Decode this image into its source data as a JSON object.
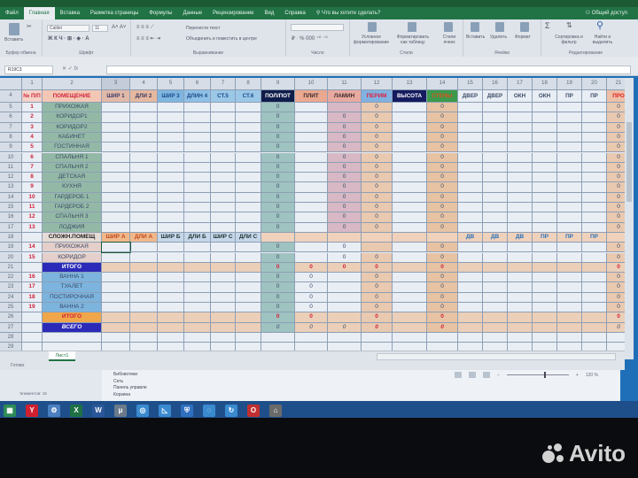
{
  "window": {
    "share": "Общий доступ",
    "tell_me": "Что вы хотите сделать?"
  },
  "tabs": [
    "Файл",
    "Главная",
    "Вставка",
    "Разметка страницы",
    "Формулы",
    "Данные",
    "Рецензирование",
    "Вид",
    "Справка"
  ],
  "active_tab": "Главная",
  "ribbon": {
    "clipboard": {
      "paste": "Вставить",
      "label": "Буфер обмена"
    },
    "font": {
      "name": "Calibri",
      "size": "11",
      "label": "Шрифт"
    },
    "alignment": {
      "wrap": "Перенести текст",
      "merge": "Объединить и поместить в центре",
      "label": "Выравнивание"
    },
    "number": {
      "label": "Число"
    },
    "styles": {
      "conditional": "Условное форматирование",
      "as_table": "Форматировать как таблицу",
      "cell_styles": "Стили ячеек",
      "label": "Стили"
    },
    "cells": {
      "insert": "Вставить",
      "delete": "Удалить",
      "format": "Формат",
      "label": "Ячейки"
    },
    "editing": {
      "sort": "Сортировка и фильтр",
      "find": "Найти и выделить",
      "label": "Редактирование"
    }
  },
  "formula_bar": {
    "name_box": "R19C3",
    "formula": ""
  },
  "sheet": {
    "columns": [
      "1",
      "2",
      "3",
      "4",
      "5",
      "6",
      "7",
      "8",
      "9",
      "10",
      "11",
      "12",
      "13",
      "14",
      "15",
      "16",
      "17",
      "18",
      "19",
      "20",
      "21"
    ],
    "selected_cell": {
      "row": 19,
      "col": 3
    },
    "rows": [
      {
        "n": "4",
        "type": "header",
        "cells": [
          "№ П/П",
          "ПОМЕЩЕНИЕ",
          "ШИР 1",
          "ДЛИ 2",
          "ШИР 3",
          "ДЛИН 4",
          "СТ.5",
          "СТ.6",
          "ПОЛ/ПОТ",
          "ПЛИТ",
          "ЛАМИН",
          "ПЕРИМ",
          "ВЫСОТА",
          "СТЕНЫ",
          "ДВЕР",
          "ДВЕР",
          "ОКН",
          "ОКН",
          "ПР",
          "ПР",
          "ПРО"
        ]
      },
      {
        "n": "5",
        "type": "room",
        "cells": [
          "1",
          "ПРИХОЖАЯ",
          "",
          "",
          "",
          "",
          "",
          "",
          "0",
          "",
          "",
          "0",
          "",
          "0",
          "",
          "",
          "",
          "",
          "",
          "",
          "0"
        ]
      },
      {
        "n": "6",
        "type": "room",
        "cells": [
          "2",
          "КОРИДОР1",
          "",
          "",
          "",
          "",
          "",
          "",
          "0",
          "",
          "0",
          "0",
          "",
          "0",
          "",
          "",
          "",
          "",
          "",
          "",
          "0"
        ]
      },
      {
        "n": "7",
        "type": "room",
        "cells": [
          "3",
          "КОРИДОР2",
          "",
          "",
          "",
          "",
          "",
          "",
          "0",
          "",
          "0",
          "0",
          "",
          "0",
          "",
          "",
          "",
          "",
          "",
          "",
          "0"
        ]
      },
      {
        "n": "8",
        "type": "room",
        "cells": [
          "4",
          "КАБИНЕТ",
          "",
          "",
          "",
          "",
          "",
          "",
          "0",
          "",
          "0",
          "0",
          "",
          "0",
          "",
          "",
          "",
          "",
          "",
          "",
          "0"
        ]
      },
      {
        "n": "9",
        "type": "room",
        "cells": [
          "5",
          "ГОСТИННАЯ",
          "",
          "",
          "",
          "",
          "",
          "",
          "0",
          "",
          "0",
          "0",
          "",
          "0",
          "",
          "",
          "",
          "",
          "",
          "",
          "0"
        ]
      },
      {
        "n": "10",
        "type": "room",
        "cells": [
          "6",
          "СПАЛЬНЯ 1",
          "",
          "",
          "",
          "",
          "",
          "",
          "0",
          "",
          "0",
          "0",
          "",
          "0",
          "",
          "",
          "",
          "",
          "",
          "",
          "0"
        ]
      },
      {
        "n": "11",
        "type": "room",
        "cells": [
          "7",
          "СПАЛЬНЯ 2",
          "",
          "",
          "",
          "",
          "",
          "",
          "0",
          "",
          "0",
          "0",
          "",
          "0",
          "",
          "",
          "",
          "",
          "",
          "",
          "0"
        ]
      },
      {
        "n": "12",
        "type": "room",
        "cells": [
          "8",
          "ДЕТСКАЯ",
          "",
          "",
          "",
          "",
          "",
          "",
          "0",
          "",
          "0",
          "0",
          "",
          "0",
          "",
          "",
          "",
          "",
          "",
          "",
          "0"
        ]
      },
      {
        "n": "13",
        "type": "room",
        "cells": [
          "9",
          "КУХНЯ",
          "",
          "",
          "",
          "",
          "",
          "",
          "0",
          "",
          "0",
          "0",
          "",
          "0",
          "",
          "",
          "",
          "",
          "",
          "",
          "0"
        ]
      },
      {
        "n": "14",
        "type": "room",
        "cells": [
          "10",
          "ГАРДЕРОБ 1",
          "",
          "",
          "",
          "",
          "",
          "",
          "0",
          "",
          "0",
          "0",
          "",
          "0",
          "",
          "",
          "",
          "",
          "",
          "",
          "0"
        ]
      },
      {
        "n": "15",
        "type": "room",
        "cells": [
          "11",
          "ГАРДЕРОБ 2",
          "",
          "",
          "",
          "",
          "",
          "",
          "0",
          "",
          "0",
          "0",
          "",
          "0",
          "",
          "",
          "",
          "",
          "",
          "",
          "0"
        ]
      },
      {
        "n": "16",
        "type": "room",
        "cells": [
          "12",
          "СПАЛЬНЯ 3",
          "",
          "",
          "",
          "",
          "",
          "",
          "0",
          "",
          "0",
          "0",
          "",
          "0",
          "",
          "",
          "",
          "",
          "",
          "",
          "0"
        ]
      },
      {
        "n": "17",
        "type": "room",
        "cells": [
          "13",
          "ЛОДЖИЯ",
          "",
          "",
          "",
          "",
          "",
          "",
          "0",
          "",
          "0",
          "0",
          "",
          "0",
          "",
          "",
          "",
          "",
          "",
          "",
          "0"
        ]
      },
      {
        "n": "18",
        "type": "subheader",
        "cells": [
          "",
          "СЛОЖН.ПОМЕЩ",
          "ШИР А",
          "ДЛИ А",
          "ШИР Б",
          "ДЛИ Б",
          "ШИР С",
          "ДЛИ С",
          "",
          "",
          "",
          "",
          "",
          "",
          "ДВ",
          "ДВ",
          "ДВ",
          "ПР",
          "ПР",
          "ПР",
          ""
        ]
      },
      {
        "n": "19",
        "type": "complex",
        "cells": [
          "14",
          "ПРИХОЖАЯ",
          "",
          "",
          "",
          "",
          "",
          "",
          "0",
          "",
          "0",
          "",
          "",
          "0",
          "",
          "",
          "",
          "",
          "",
          "",
          "0"
        ]
      },
      {
        "n": "20",
        "type": "complex",
        "cells": [
          "15",
          "КОРИДОР",
          "",
          "",
          "",
          "",
          "",
          "",
          "0",
          "",
          "0",
          "0",
          "",
          "0",
          "",
          "",
          "",
          "",
          "",
          "",
          "0"
        ]
      },
      {
        "n": "21",
        "type": "total1",
        "cells": [
          "",
          "ИТОГО",
          "",
          "",
          "",
          "",
          "",
          "",
          "0",
          "0",
          "0",
          "0",
          "",
          "0",
          "",
          "",
          "",
          "",
          "",
          "",
          "0"
        ]
      },
      {
        "n": "22",
        "type": "wet",
        "cells": [
          "16",
          "ВАННА 1",
          "",
          "",
          "",
          "",
          "",
          "",
          "0",
          "0",
          "",
          "0",
          "",
          "0",
          "",
          "",
          "",
          "",
          "",
          "",
          "0"
        ]
      },
      {
        "n": "23",
        "type": "wet",
        "cells": [
          "17",
          "ТУАЛЕТ",
          "",
          "",
          "",
          "",
          "",
          "",
          "0",
          "0",
          "",
          "0",
          "",
          "0",
          "",
          "",
          "",
          "",
          "",
          "",
          "0"
        ]
      },
      {
        "n": "24",
        "type": "wet",
        "cells": [
          "18",
          "ПОСТИРОЧНАЯ",
          "",
          "",
          "",
          "",
          "",
          "",
          "0",
          "0",
          "",
          "0",
          "",
          "0",
          "",
          "",
          "",
          "",
          "",
          "",
          "0"
        ]
      },
      {
        "n": "25",
        "type": "wet",
        "cells": [
          "19",
          "ВАННА 2",
          "",
          "",
          "",
          "",
          "",
          "",
          "0",
          "0",
          "",
          "0",
          "",
          "0",
          "",
          "",
          "",
          "",
          "",
          "",
          "0"
        ]
      },
      {
        "n": "26",
        "type": "total2",
        "cells": [
          "",
          "ИТОГО",
          "",
          "",
          "",
          "",
          "",
          "",
          "0",
          "0",
          "",
          "0",
          "",
          "0",
          "",
          "",
          "",
          "",
          "",
          "",
          "0"
        ]
      },
      {
        "n": "27",
        "type": "grand",
        "cells": [
          "",
          "ВСЕГО",
          "",
          "",
          "",
          "",
          "",
          "",
          "0",
          "0",
          "0",
          "0",
          "",
          "0",
          "",
          "",
          "",
          "",
          "",
          "",
          "0"
        ]
      },
      {
        "n": "28",
        "type": "empty",
        "cells": [
          "",
          "",
          "",
          "",
          "",
          "",
          "",
          "",
          "",
          "",
          "",
          "",
          "",
          "",
          "",
          "",
          "",
          "",
          "",
          "",
          ""
        ]
      },
      {
        "n": "29",
        "type": "empty",
        "cells": [
          "",
          "",
          "",
          "",
          "",
          "",
          "",
          "",
          "",
          "",
          "",
          "",
          "",
          "",
          "",
          "",
          "",
          "",
          "",
          "",
          ""
        ]
      }
    ],
    "tab": "Лист1"
  },
  "status": {
    "ready": "Готово",
    "zoom": "120 %"
  },
  "explorer": {
    "items_count": "Элементов: 16",
    "nav": [
      "Библиотеки",
      "Сеть",
      "Панель управле",
      "Корзина"
    ]
  },
  "taskbar": [
    "file-explorer",
    "yandex-browser",
    "settings",
    "excel",
    "word",
    "app",
    "chrome-like",
    "app2",
    "defender",
    "app3",
    "sync",
    "opera",
    "trash"
  ],
  "watermark": "Avito",
  "colors": {
    "excel_green": "#217346",
    "room_fill": "#93b9a6",
    "pol_fill": "#9fc3c0",
    "lamin_fill": "#d7b8c4",
    "perim_fill": "#e9c9b0",
    "walls_fill": "#e7c3a4",
    "total1_fill": "#2b2ab8",
    "total2_fill": "#f0a64a"
  }
}
